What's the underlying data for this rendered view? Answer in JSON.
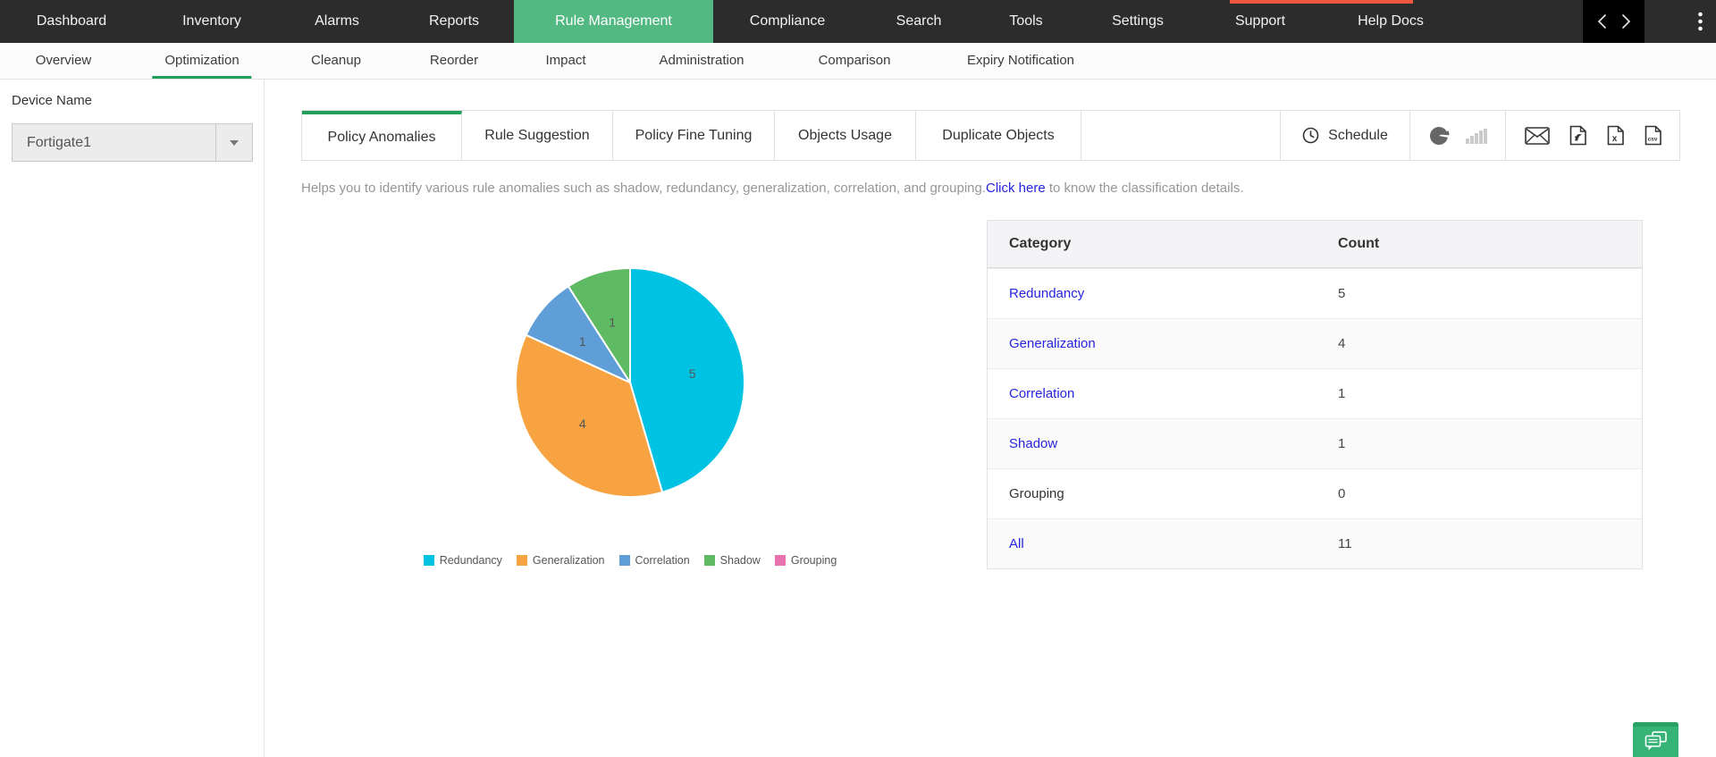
{
  "top_nav": {
    "items": [
      {
        "label": "Dashboard"
      },
      {
        "label": "Inventory"
      },
      {
        "label": "Alarms"
      },
      {
        "label": "Reports"
      },
      {
        "label": "Rule Management",
        "active": true
      },
      {
        "label": "Compliance"
      },
      {
        "label": "Search"
      },
      {
        "label": "Tools"
      },
      {
        "label": "Settings"
      },
      {
        "label": "Support"
      },
      {
        "label": "Help Docs"
      }
    ],
    "icons": [
      "chevron-left-icon",
      "chevron-right-icon",
      "kebab-menu-icon"
    ]
  },
  "sub_nav": {
    "items": [
      {
        "label": "Overview"
      },
      {
        "label": "Optimization",
        "active": true
      },
      {
        "label": "Cleanup"
      },
      {
        "label": "Reorder"
      },
      {
        "label": "Impact"
      },
      {
        "label": "Administration"
      },
      {
        "label": "Comparison"
      },
      {
        "label": "Expiry Notification"
      }
    ]
  },
  "sidebar": {
    "device_name_label": "Device Name",
    "selected_device": "Fortigate1"
  },
  "report_tabs": {
    "tabs": [
      {
        "label": "Policy Anomalies",
        "active": true
      },
      {
        "label": "Rule Suggestion"
      },
      {
        "label": "Policy Fine Tuning"
      },
      {
        "label": "Objects Usage"
      },
      {
        "label": "Duplicate Objects"
      }
    ],
    "schedule_label": "Schedule",
    "icons": [
      "clock-icon",
      "pie-chart-icon",
      "bar-chart-icon",
      "email-icon",
      "pdf-export-icon",
      "excel-export-icon",
      "csv-export-icon"
    ]
  },
  "description": {
    "text_before_link": "Helps you to identify various rule anomalies such as shadow, redundancy, generalization, correlation, and grouping.",
    "link_text": "Click here",
    "text_after_link": " to know the classification details."
  },
  "chart_data": {
    "type": "pie",
    "categories": [
      "Redundancy",
      "Generalization",
      "Correlation",
      "Shadow",
      "Grouping"
    ],
    "values": [
      5,
      4,
      1,
      1,
      0
    ],
    "colors": [
      "#00c3e3",
      "#f8a341",
      "#5f9ed7",
      "#5eba63",
      "#e873ae"
    ],
    "total": 11,
    "start_angle_deg": 0,
    "direction": "clockwise",
    "data_labels_shown_for_nonzero_slices": true,
    "legend_position": "bottom"
  },
  "summary_table": {
    "headers": [
      "Category",
      "Count"
    ],
    "rows": [
      {
        "category": "Redundancy",
        "count": "5",
        "link": true
      },
      {
        "category": "Generalization",
        "count": "4",
        "link": true
      },
      {
        "category": "Correlation",
        "count": "1",
        "link": true
      },
      {
        "category": "Shadow",
        "count": "1",
        "link": true
      },
      {
        "category": "Grouping",
        "count": "0",
        "link": false
      },
      {
        "category": "All",
        "count": "11",
        "link": true
      }
    ]
  },
  "colors": {
    "nav_bg": "#2c2c2c",
    "nav_active_green": "#53b982",
    "tab_active_green": "#22a05b",
    "link_blue": "#2525df",
    "alert_strip_red": "#f2573e",
    "chat_button_green": "#36b377"
  }
}
